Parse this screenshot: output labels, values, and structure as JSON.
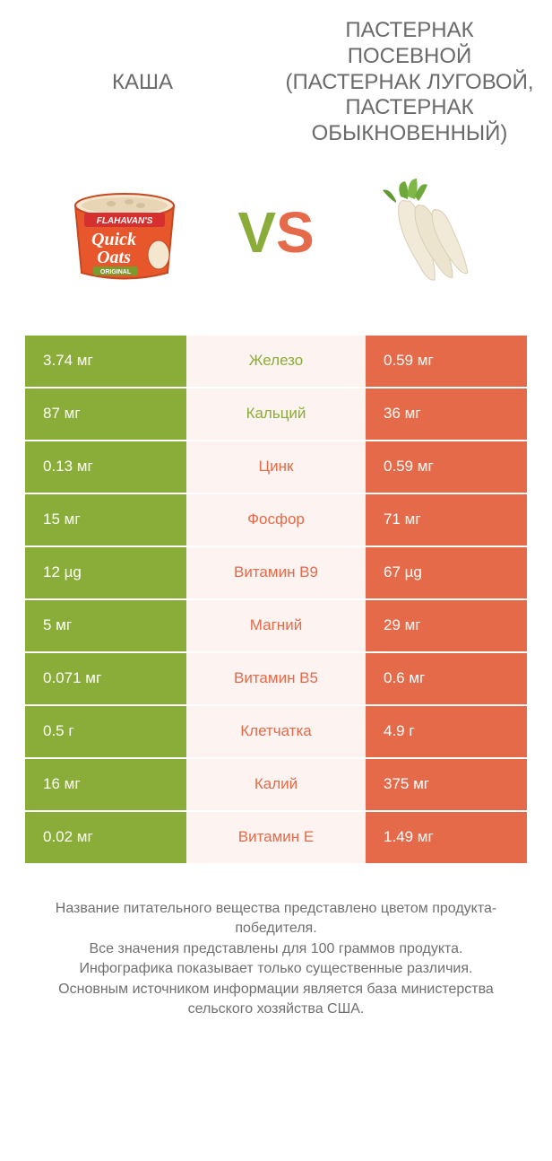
{
  "header": {
    "left_title": "КАША",
    "right_title": "ПАСТЕРНАК ПОСЕВНОЙ (ПАСТЕРНАК ЛУГОВОЙ, ПАСТЕРНАК ОБЫКНОВЕННЫЙ)"
  },
  "vs": {
    "v": "V",
    "s": "S"
  },
  "colors": {
    "left": "#8aad3a",
    "right": "#e46a4a",
    "mid_bg": "#fdf3f0",
    "text": "#5a5a5a"
  },
  "rows": [
    {
      "left": "3.74 мг",
      "mid": "Железо",
      "right": "0.59 мг",
      "winner": "left"
    },
    {
      "left": "87 мг",
      "mid": "Кальций",
      "right": "36 мг",
      "winner": "left"
    },
    {
      "left": "0.13 мг",
      "mid": "Цинк",
      "right": "0.59 мг",
      "winner": "right"
    },
    {
      "left": "15 мг",
      "mid": "Фосфор",
      "right": "71 мг",
      "winner": "right"
    },
    {
      "left": "12 µg",
      "mid": "Витамин B9",
      "right": "67 µg",
      "winner": "right"
    },
    {
      "left": "5 мг",
      "mid": "Магний",
      "right": "29 мг",
      "winner": "right"
    },
    {
      "left": "0.071 мг",
      "mid": "Витамин B5",
      "right": "0.6 мг",
      "winner": "right"
    },
    {
      "left": "0.5 г",
      "mid": "Клетчатка",
      "right": "4.9 г",
      "winner": "right"
    },
    {
      "left": "16 мг",
      "mid": "Калий",
      "right": "375 мг",
      "winner": "right"
    },
    {
      "left": "0.02 мг",
      "mid": "Витамин E",
      "right": "1.49 мг",
      "winner": "right"
    }
  ],
  "footer": {
    "line1": "Название питательного вещества представлено цветом продукта-победителя.",
    "line2": "Все значения представлены для 100 граммов продукта.",
    "line3": "Инфографика показывает только существенные различия.",
    "line4": "Основным источником информации является база министерства сельского хозяйства США."
  },
  "oats_label": {
    "brand": "FLAHAVAN'S",
    "line1": "Quick",
    "line2": "Oats",
    "tag": "ORIGINAL"
  }
}
